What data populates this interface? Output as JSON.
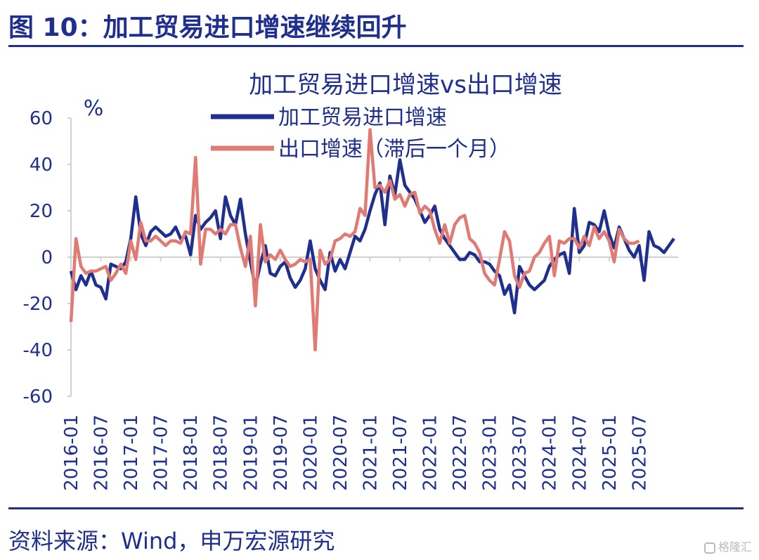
{
  "figure_title": "图 10：加工贸易进口增速继续回升",
  "source": "资料来源：Wind，申万宏源研究",
  "watermark": "格隆汇",
  "colors": {
    "navy": "#1f2f8f",
    "salmon": "#e07a72"
  },
  "chart_data": {
    "type": "line",
    "title": "加工贸易进口增速vs出口增速",
    "unit_label": "%",
    "ylim": [
      -60,
      60
    ],
    "yticks": [
      60,
      40,
      20,
      0,
      -20,
      -40,
      -60
    ],
    "start_month": "2016-01",
    "xtick_labels": [
      "2016-01",
      "2016-07",
      "2017-01",
      "2017-07",
      "2018-01",
      "2018-07",
      "2019-01",
      "2019-07",
      "2020-01",
      "2020-07",
      "2021-01",
      "2021-07",
      "2022-01",
      "2022-07",
      "2023-01",
      "2023-07",
      "2024-01",
      "2024-07",
      "2025-01",
      "2025-07"
    ],
    "legend_position": "top-center",
    "series": [
      {
        "name": "加工贸易进口增速",
        "color": "#1f2f8f",
        "values": [
          -6,
          -14,
          -8,
          -12,
          -6,
          -12,
          -13,
          -18,
          -3,
          -4,
          -5,
          -2,
          8,
          26,
          10,
          5,
          11,
          13,
          11,
          9,
          10,
          13,
          8,
          9,
          1,
          18,
          12,
          15,
          17,
          20,
          8,
          26,
          18,
          14,
          25,
          10,
          -2,
          -13,
          -3,
          5,
          -7,
          -8,
          -4,
          -2,
          -9,
          -13,
          -10,
          -5,
          7,
          -5,
          -10,
          -14,
          2,
          -6,
          -1,
          -5,
          2,
          9,
          7,
          12,
          20,
          27,
          32,
          14,
          35,
          27,
          42,
          31,
          28,
          25,
          20,
          15,
          18,
          22,
          12,
          8,
          5,
          2,
          -1,
          -1,
          2,
          1,
          -2,
          -2,
          -3,
          -6,
          -8,
          -16,
          -12,
          -24,
          -4,
          -8,
          -12,
          -14,
          -12,
          -10,
          -4,
          -1,
          1,
          2,
          -7,
          21,
          2,
          5,
          15,
          14,
          11,
          20,
          10,
          4,
          13,
          8,
          3,
          0,
          5,
          -10,
          11,
          5,
          4,
          2,
          5,
          8
        ]
      },
      {
        "name": "出口增速（滞后一个月）",
        "color": "#e07a72",
        "values": [
          -28,
          8,
          -4,
          -7,
          -6,
          -6,
          -5,
          -4,
          -10,
          -7,
          -3,
          -7,
          7,
          -1,
          15,
          7,
          7,
          9,
          7,
          5,
          7,
          7,
          6,
          11,
          10,
          43,
          -3,
          12,
          12,
          10,
          12,
          10,
          14,
          14,
          4,
          -4,
          9,
          -21,
          14,
          -2,
          1,
          -1,
          3,
          -1,
          -4,
          -3,
          -1,
          -2,
          -1,
          -40,
          3,
          -3,
          -1,
          7,
          8,
          10,
          9,
          11,
          21,
          18,
          55,
          30,
          31,
          28,
          33,
          25,
          27,
          22,
          27,
          28,
          19,
          22,
          20,
          12,
          6,
          14,
          6,
          14,
          17,
          18,
          8,
          6,
          2,
          -7,
          -10,
          -12,
          -1,
          11,
          7,
          -8,
          -13,
          -7,
          -6,
          0,
          2,
          6,
          9,
          -8,
          7,
          6,
          8,
          8,
          4,
          9,
          5,
          13,
          8,
          11,
          7,
          -2,
          12,
          8,
          6,
          6,
          7
        ]
      }
    ]
  }
}
